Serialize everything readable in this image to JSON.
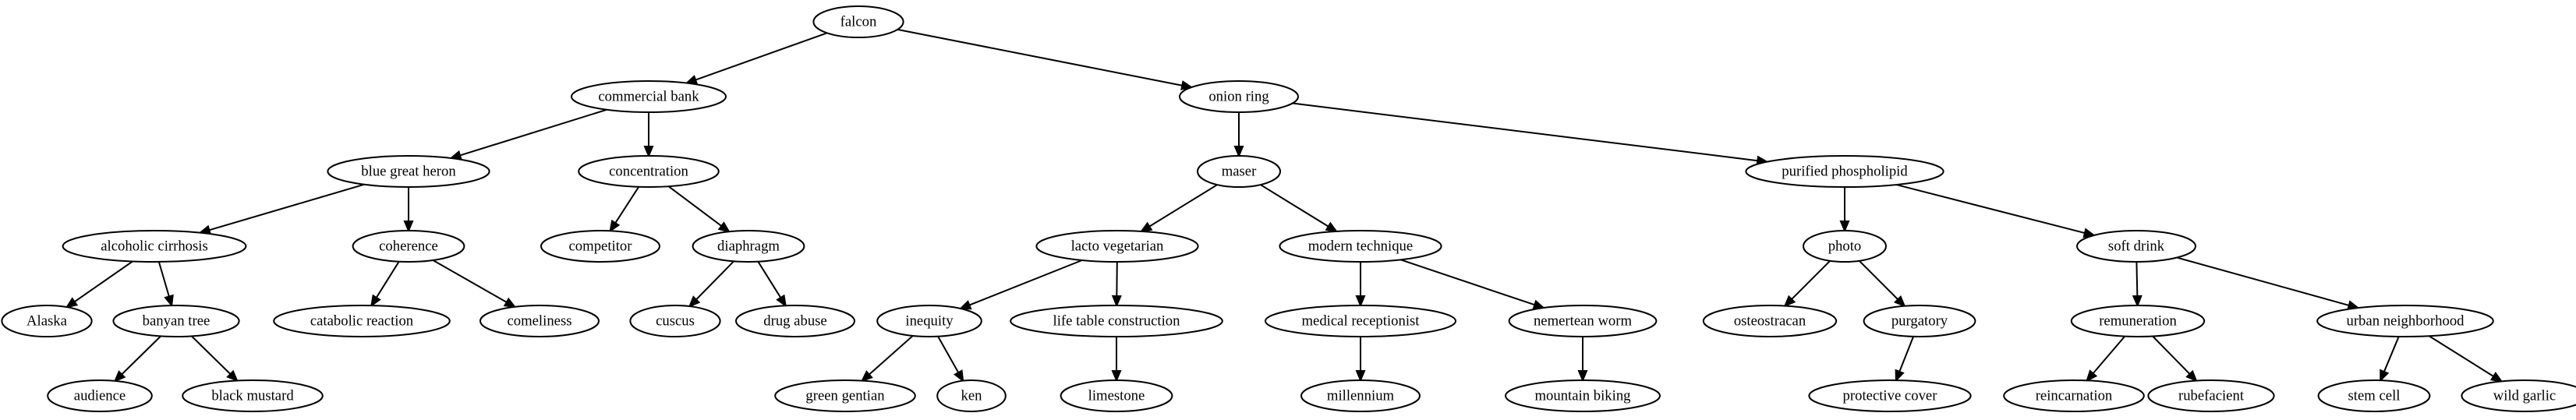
{
  "nodes": [
    {
      "id": "n0",
      "label": "falcon"
    },
    {
      "id": "n1",
      "label": "commercial bank"
    },
    {
      "id": "n2",
      "label": "onion ring"
    },
    {
      "id": "n3",
      "label": "blue great heron"
    },
    {
      "id": "n4",
      "label": "concentration"
    },
    {
      "id": "n5",
      "label": "maser"
    },
    {
      "id": "n6",
      "label": "purified phospholipid"
    },
    {
      "id": "n7",
      "label": "alcoholic cirrhosis"
    },
    {
      "id": "n8",
      "label": "coherence"
    },
    {
      "id": "n9",
      "label": "competitor"
    },
    {
      "id": "n10",
      "label": "diaphragm"
    },
    {
      "id": "n11",
      "label": "lacto vegetarian"
    },
    {
      "id": "n12",
      "label": "modern technique"
    },
    {
      "id": "n13",
      "label": "photo"
    },
    {
      "id": "n14",
      "label": "soft drink"
    },
    {
      "id": "n15",
      "label": "Alaska"
    },
    {
      "id": "n16",
      "label": "banyan tree"
    },
    {
      "id": "n17",
      "label": "catabolic reaction"
    },
    {
      "id": "n18",
      "label": "comeliness"
    },
    {
      "id": "n19",
      "label": "cuscus"
    },
    {
      "id": "n20",
      "label": "drug abuse"
    },
    {
      "id": "n21",
      "label": "inequity"
    },
    {
      "id": "n22",
      "label": "life table construction"
    },
    {
      "id": "n23",
      "label": "medical receptionist"
    },
    {
      "id": "n24",
      "label": "nemertean worm"
    },
    {
      "id": "n25",
      "label": "osteostracan"
    },
    {
      "id": "n26",
      "label": "purgatory"
    },
    {
      "id": "n27",
      "label": "remuneration"
    },
    {
      "id": "n28",
      "label": "urban neighborhood"
    },
    {
      "id": "n29",
      "label": "audience"
    },
    {
      "id": "n30",
      "label": "black mustard"
    },
    {
      "id": "n31",
      "label": "green gentian"
    },
    {
      "id": "n32",
      "label": "ken"
    },
    {
      "id": "n33",
      "label": "limestone"
    },
    {
      "id": "n34",
      "label": "millennium"
    },
    {
      "id": "n35",
      "label": "mountain biking"
    },
    {
      "id": "n36",
      "label": "protective cover"
    },
    {
      "id": "n37",
      "label": "reincarnation"
    },
    {
      "id": "n38",
      "label": "rubefacient"
    },
    {
      "id": "n39",
      "label": "stem cell"
    },
    {
      "id": "n40",
      "label": "wild garlic"
    }
  ],
  "edges": [
    [
      "n0",
      "n1"
    ],
    [
      "n0",
      "n2"
    ],
    [
      "n1",
      "n3"
    ],
    [
      "n1",
      "n4"
    ],
    [
      "n2",
      "n5"
    ],
    [
      "n2",
      "n6"
    ],
    [
      "n3",
      "n7"
    ],
    [
      "n3",
      "n8"
    ],
    [
      "n4",
      "n9"
    ],
    [
      "n4",
      "n10"
    ],
    [
      "n5",
      "n11"
    ],
    [
      "n5",
      "n12"
    ],
    [
      "n6",
      "n13"
    ],
    [
      "n6",
      "n14"
    ],
    [
      "n7",
      "n15"
    ],
    [
      "n7",
      "n16"
    ],
    [
      "n8",
      "n17"
    ],
    [
      "n8",
      "n18"
    ],
    [
      "n10",
      "n19"
    ],
    [
      "n10",
      "n20"
    ],
    [
      "n11",
      "n21"
    ],
    [
      "n11",
      "n22"
    ],
    [
      "n12",
      "n23"
    ],
    [
      "n12",
      "n24"
    ],
    [
      "n13",
      "n25"
    ],
    [
      "n13",
      "n26"
    ],
    [
      "n14",
      "n27"
    ],
    [
      "n14",
      "n28"
    ],
    [
      "n16",
      "n29"
    ],
    [
      "n16",
      "n30"
    ],
    [
      "n21",
      "n31"
    ],
    [
      "n21",
      "n32"
    ],
    [
      "n22",
      "n33"
    ],
    [
      "n23",
      "n34"
    ],
    [
      "n24",
      "n35"
    ],
    [
      "n26",
      "n36"
    ],
    [
      "n27",
      "n37"
    ],
    [
      "n27",
      "n38"
    ],
    [
      "n28",
      "n39"
    ],
    [
      "n28",
      "n40"
    ]
  ]
}
